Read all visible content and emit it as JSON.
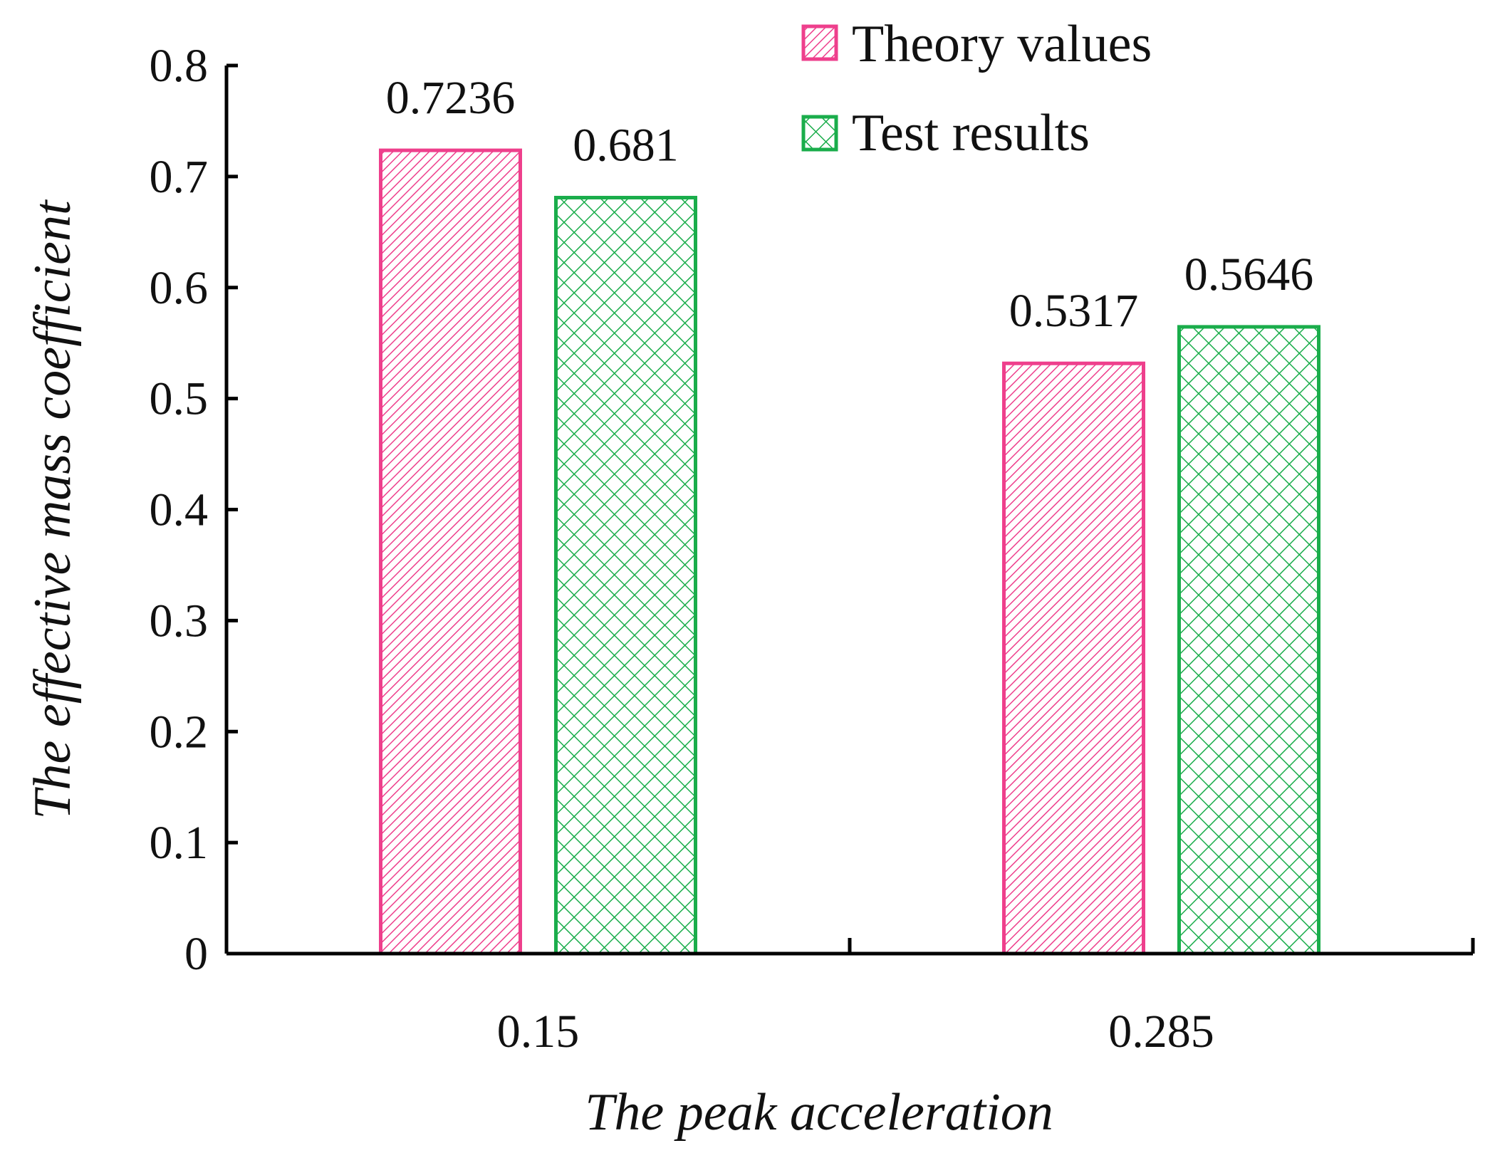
{
  "chart_data": {
    "type": "bar",
    "title": "",
    "categories": [
      "0.15",
      "0.285"
    ],
    "series": [
      {
        "name": "Theory values",
        "values": [
          0.7236,
          0.5317
        ],
        "labels": [
          "0.7236",
          "0.5317"
        ],
        "color": "#ee3f8c",
        "pattern": "diagonal-hatch"
      },
      {
        "name": "Test results",
        "values": [
          0.681,
          0.5646
        ],
        "labels": [
          "0.681",
          "0.5646"
        ],
        "color": "#1aad4b",
        "pattern": "cross-hatch"
      }
    ],
    "xlabel": "The peak acceleration",
    "ylabel": "The effective mass coefficient",
    "ylim": [
      0,
      0.8
    ],
    "yticks": [
      0,
      0.1,
      0.2,
      0.3,
      0.4,
      0.5,
      0.6,
      0.7,
      0.8
    ],
    "ytick_labels": [
      "0",
      "0.1",
      "0.2",
      "0.3",
      "0.4",
      "0.5",
      "0.6",
      "0.7",
      "0.8"
    ],
    "grid": false,
    "legend_position": "top-right"
  }
}
